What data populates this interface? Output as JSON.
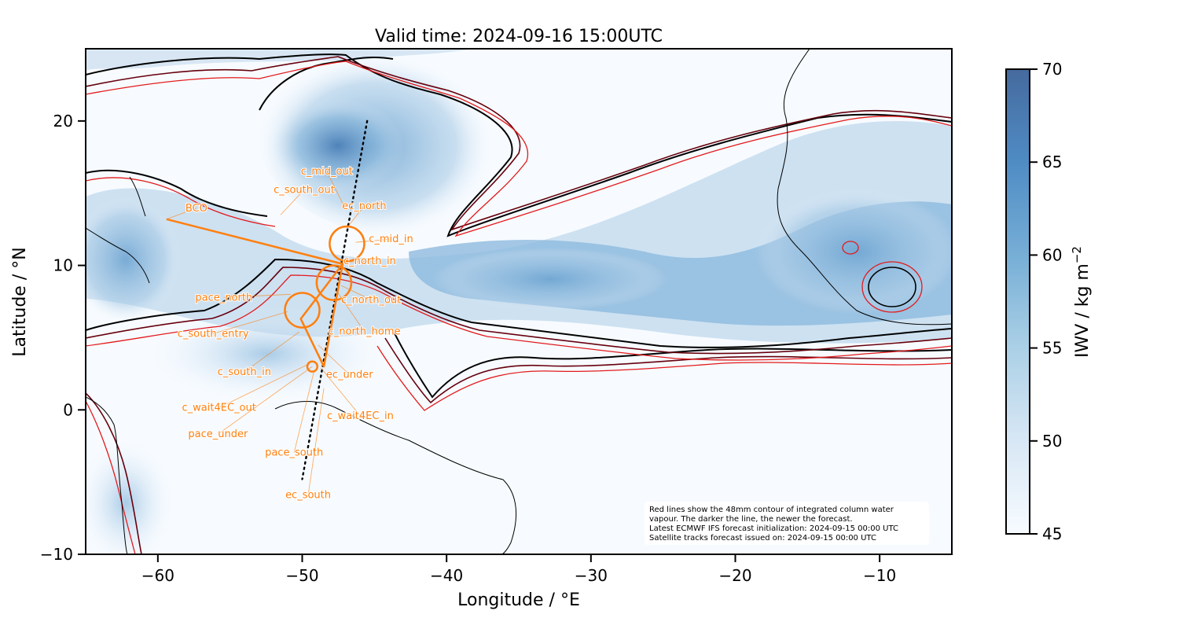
{
  "title": "Valid time: 2024-09-16 15:00UTC",
  "x_axis": {
    "label": "Longitude / °E",
    "ticks": [
      -60,
      -50,
      -40,
      -30,
      -20,
      -10
    ],
    "tick_labels": [
      "−60",
      "−50",
      "−40",
      "−30",
      "−20",
      "−10"
    ],
    "range": [
      -65,
      -5
    ]
  },
  "y_axis": {
    "label": "Latitude / °N",
    "ticks": [
      20,
      10,
      0,
      -10
    ],
    "tick_labels": [
      "20",
      "10",
      "0",
      "−10"
    ],
    "range": [
      -10,
      25
    ]
  },
  "colorbar": {
    "label": "IWV / kg m",
    "label_superscript": "−2",
    "ticks": [
      70,
      65,
      60,
      55,
      50,
      45
    ],
    "tick_labels": [
      "70",
      "65",
      "60",
      "55",
      "50",
      "45"
    ],
    "range": [
      45,
      70
    ],
    "color_low": "#f7fbff",
    "color_high": "#4a6fa0"
  },
  "colors": {
    "flight_track": "#ff7f0e",
    "contour_newest": "#000000",
    "contour_older": "#e31a1c",
    "contour_mid": "#67000d"
  },
  "note_lines": [
    "Red lines show the 48mm contour of integrated column water",
    "vapour. The darker the line, the newer the forecast.",
    "Latest ECMWF IFS forecast initialization: 2024-09-15 00:00 UTC",
    "Satellite tracks forecast issued on: 2024-09-15 00:00 UTC"
  ],
  "waypoints": [
    {
      "name": "BCO",
      "lon": -59.4,
      "lat": 13.2
    },
    {
      "name": "c_south_out",
      "lon": -51.5,
      "lat": 13.5
    },
    {
      "name": "c_mid_out",
      "lon": -47.1,
      "lat": 14.1
    },
    {
      "name": "ec_north",
      "lon": -46.9,
      "lat": 12.6
    },
    {
      "name": "c_mid_in",
      "lon": -46.3,
      "lat": 11.6
    },
    {
      "name": "c_north_in",
      "lon": -47.5,
      "lat": 10.2
    },
    {
      "name": "c_north_out",
      "lon": -47.3,
      "lat": 8.6
    },
    {
      "name": "c_north_home",
      "lon": -47.6,
      "lat": 8.2
    },
    {
      "name": "pace_north",
      "lon": -50.8,
      "lat": 8.0
    },
    {
      "name": "c_south_entry",
      "lon": -51.0,
      "lat": 6.8
    },
    {
      "name": "c_south_in",
      "lon": -50.2,
      "lat": 5.4
    },
    {
      "name": "ec_under",
      "lon": -48.9,
      "lat": 4.5
    },
    {
      "name": "c_wait4EC_out",
      "lon": -49.5,
      "lat": 3.2
    },
    {
      "name": "c_wait4EC_in",
      "lon": -48.7,
      "lat": 2.9
    },
    {
      "name": "pace_under",
      "lon": -49.3,
      "lat": 3.0
    },
    {
      "name": "pace_south",
      "lon": -49.2,
      "lat": 2.6
    },
    {
      "name": "ec_south",
      "lon": -48.5,
      "lat": 1.5
    }
  ],
  "flight_track_points": [
    {
      "lon": -59.4,
      "lat": 13.2
    },
    {
      "lon": -47.2,
      "lat": 10.1
    },
    {
      "lon": -48.5,
      "lat": 3.0
    },
    {
      "lon": -50.1,
      "lat": 6.3
    },
    {
      "lon": -47.2,
      "lat": 10.1
    },
    {
      "lon": -59.4,
      "lat": 13.2
    }
  ],
  "circles": [
    {
      "lon": -46.9,
      "lat": 11.5,
      "radius_deg": 1.2
    },
    {
      "lon": -47.8,
      "lat": 8.8,
      "radius_deg": 1.2
    },
    {
      "lon": -50.0,
      "lat": 6.9,
      "radius_deg": 1.2
    },
    {
      "lon": -49.3,
      "lat": 3.0,
      "radius_deg": 0.35
    }
  ],
  "satellite_track": [
    {
      "lon": -45.5,
      "lat": 20.0
    },
    {
      "lon": -50.0,
      "lat": -4.8
    }
  ]
}
